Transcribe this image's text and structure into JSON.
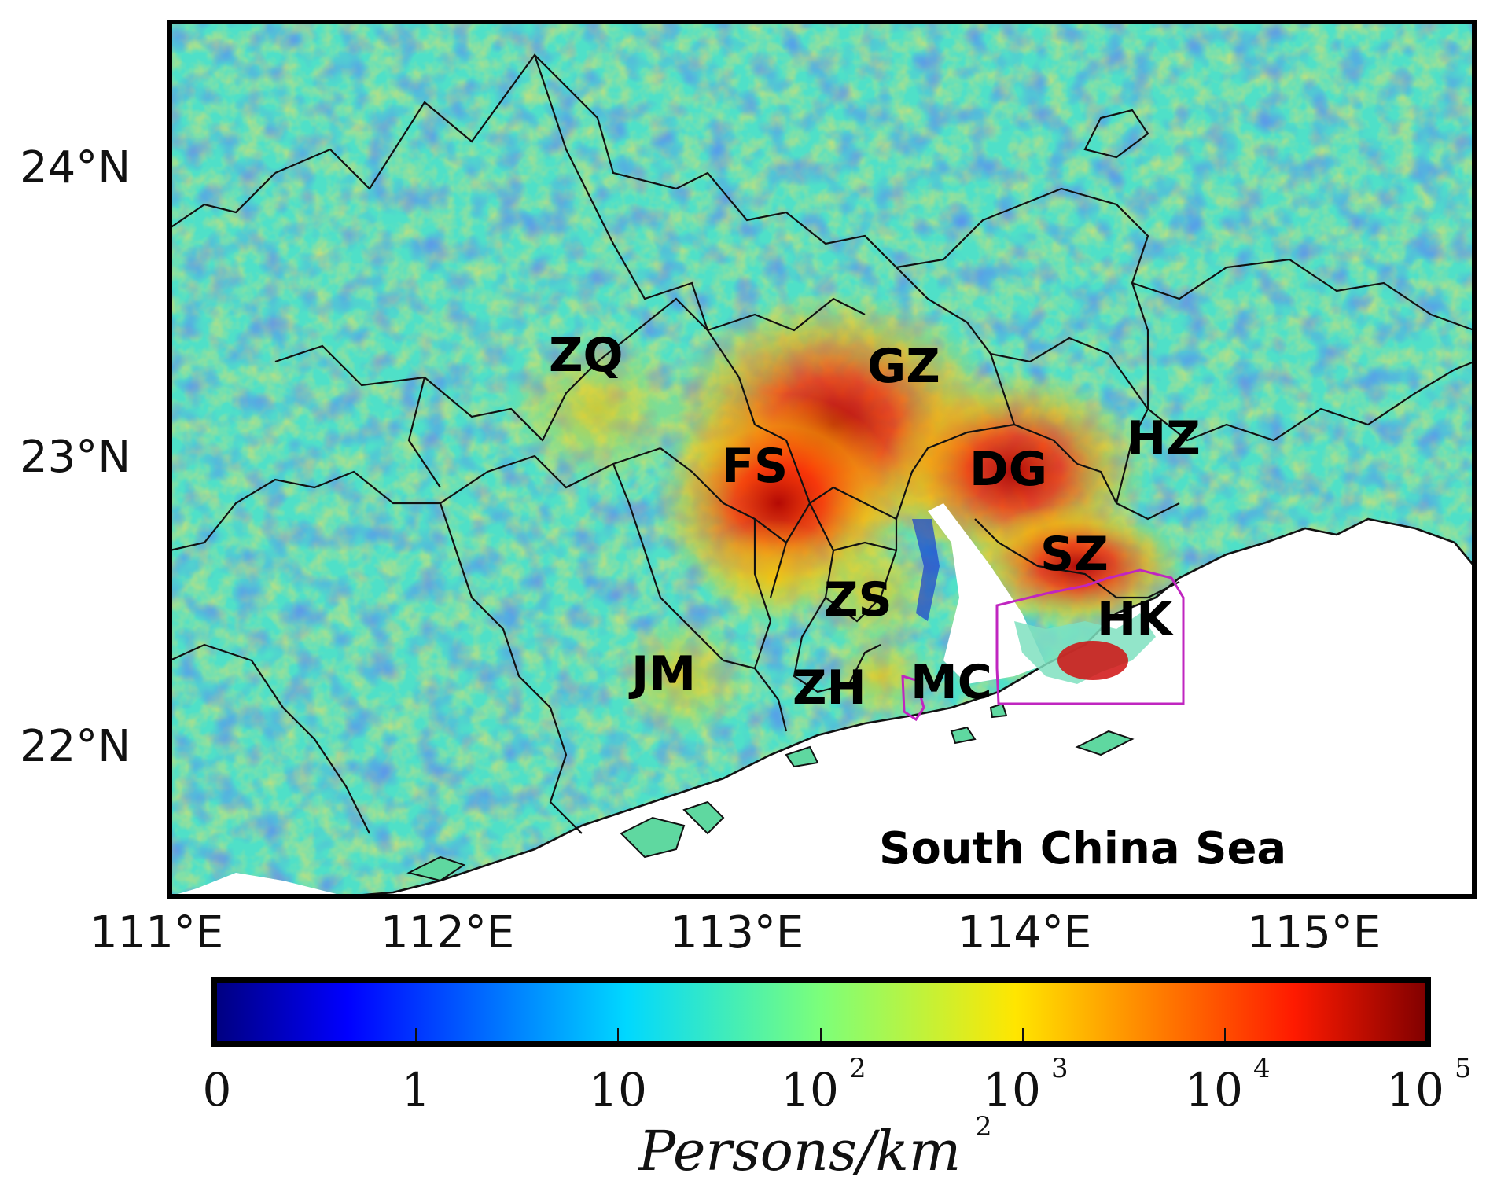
{
  "map": {
    "lat_ticks": [
      "24°N",
      "23°N",
      "22°N"
    ],
    "lon_ticks": [
      "111°E",
      "112°E",
      "113°E",
      "114°E",
      "115°E"
    ],
    "cities": [
      {
        "code": "ZQ"
      },
      {
        "code": "GZ"
      },
      {
        "code": "FS"
      },
      {
        "code": "DG"
      },
      {
        "code": "HZ"
      },
      {
        "code": "SZ"
      },
      {
        "code": "ZS"
      },
      {
        "code": "HK"
      },
      {
        "code": "JM"
      },
      {
        "code": "ZH"
      },
      {
        "code": "MC"
      }
    ],
    "sea_label": "South China Sea",
    "colors": {
      "border": "#111111",
      "hk_mc_outline": "#c026c0",
      "sea": "#ffffff"
    }
  },
  "colorbar": {
    "colormap": "jet",
    "scale": "log",
    "ticks": [
      {
        "base": "0",
        "exp": ""
      },
      {
        "base": "1",
        "exp": ""
      },
      {
        "base": "10",
        "exp": ""
      },
      {
        "base": "10",
        "exp": "2"
      },
      {
        "base": "10",
        "exp": "3"
      },
      {
        "base": "10",
        "exp": "4"
      },
      {
        "base": "10",
        "exp": "5"
      }
    ],
    "label_text": "Persons/km",
    "label_exp": "2"
  }
}
